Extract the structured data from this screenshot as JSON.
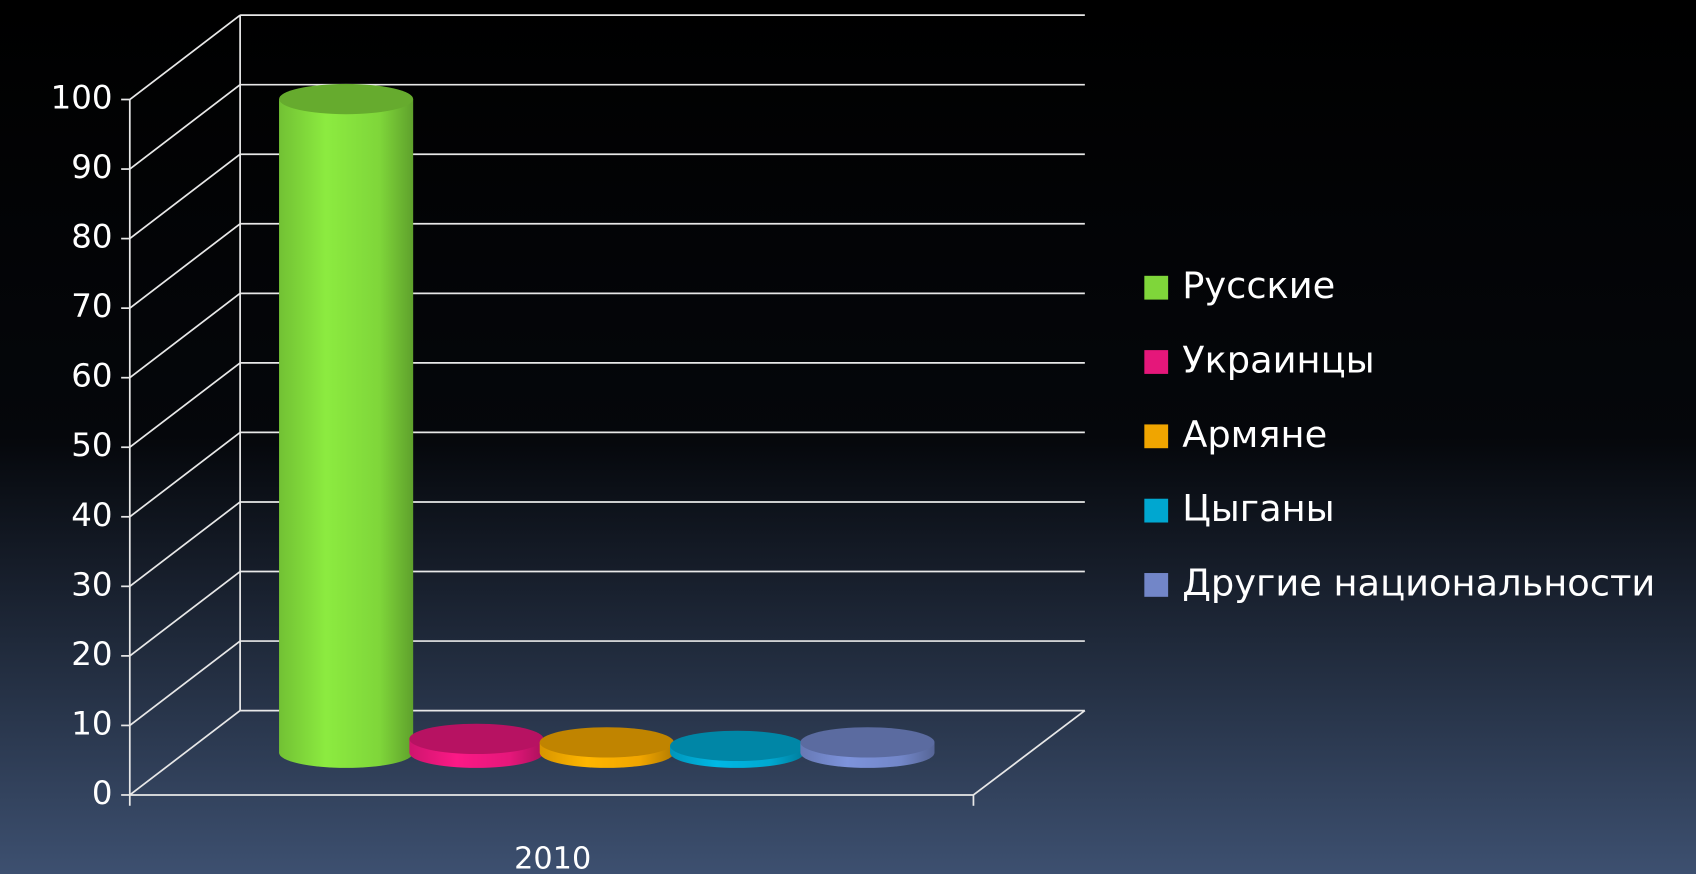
{
  "chart_data": {
    "type": "bar3d",
    "categories": [
      "2010"
    ],
    "series": [
      {
        "name": "Русские",
        "color": "#7fd63a",
        "values": [
          94
        ]
      },
      {
        "name": "Украинцы",
        "color": "#e5177a",
        "values": [
          2
        ]
      },
      {
        "name": "Армяне",
        "color": "#f0a500",
        "values": [
          1.5
        ]
      },
      {
        "name": "Цыганы",
        "color": "#00a7d0",
        "values": [
          1
        ]
      },
      {
        "name": "Другие национальности",
        "color": "#7286c8",
        "values": [
          1.5
        ]
      }
    ],
    "ylim": [
      0,
      100
    ],
    "yticks": [
      0,
      10,
      20,
      30,
      40,
      50,
      60,
      70,
      80,
      90,
      100
    ],
    "grid": true,
    "legend": "right"
  }
}
